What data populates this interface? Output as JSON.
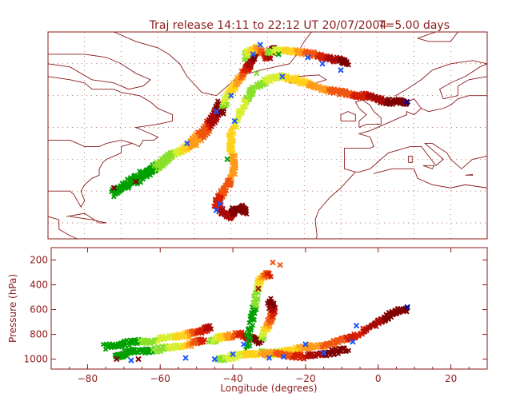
{
  "title": "Traj release 14:11 to 22:12 UT 20/07/2004",
  "time_label": "T=5.00 days",
  "colors": {
    "frame": "#8b1a1a",
    "text": "#8b1a1a",
    "coast": "#8b1a1a",
    "grid": "#8b1a1a",
    "palette": [
      "#00009c",
      "#1a55ff",
      "#00a000",
      "#88e02a",
      "#d8ef30",
      "#ffd21a",
      "#ff9a1a",
      "#f05510",
      "#d51d00",
      "#a80a08",
      "#7e0000"
    ]
  },
  "chart_data": [
    {
      "type": "map",
      "description_visible": "trajectory map panel",
      "grid": true,
      "lon_range": [
        -90,
        30
      ],
      "lat_range": [
        15,
        80
      ],
      "trajectories": [
        {
          "lon": [
            -72,
            -70,
            -66,
            -62,
            -58,
            -55,
            -52,
            -50,
            -48,
            -46,
            -44,
            -43
          ],
          "lat": [
            29,
            31,
            33,
            36,
            39,
            42,
            44,
            46,
            49,
            52,
            55,
            58
          ]
        },
        {
          "lon": [
            -72,
            -69,
            -65,
            -61,
            -57,
            -53,
            -50,
            -48,
            -46,
            -44,
            -42
          ],
          "lat": [
            30,
            32,
            35,
            38,
            41,
            43,
            45,
            47,
            50,
            53,
            56
          ]
        },
        {
          "lon": [
            -42,
            -41,
            -39,
            -37,
            -36,
            -35,
            -34,
            -33
          ],
          "lat": [
            57,
            60,
            63,
            66,
            68,
            70,
            72,
            74
          ]
        },
        {
          "lon": [
            -36,
            -35,
            -33,
            -31,
            -30,
            -29,
            -28
          ],
          "lat": [
            72,
            74,
            75,
            73,
            72,
            74,
            75
          ]
        },
        {
          "lon": [
            -34,
            -36,
            -38,
            -40,
            -40,
            -39,
            -40,
            -42,
            -43,
            -44,
            -42,
            -40,
            -39,
            -37,
            -36
          ],
          "lat": [
            62,
            58,
            53,
            48,
            43,
            38,
            34,
            30,
            28,
            26,
            23,
            22,
            24,
            25,
            23
          ]
        },
        {
          "lon": [
            -33,
            -30,
            -26,
            -22,
            -18,
            -14,
            -10,
            -6,
            -3,
            0,
            3,
            6,
            8
          ],
          "lat": [
            63,
            65,
            66,
            65,
            63,
            62,
            61,
            60,
            60,
            59,
            58,
            58,
            58
          ]
        },
        {
          "lon": [
            -30,
            -26,
            -22,
            -18,
            -14,
            -10,
            -8
          ],
          "lat": [
            74,
            74,
            74,
            73,
            72,
            71,
            70
          ]
        }
      ],
      "markers": [
        {
          "lon": -72,
          "lat": 31,
          "color": "#7e0000"
        },
        {
          "lon": -66,
          "lat": 33,
          "color": "#7e0000"
        },
        {
          "lon": -52,
          "lat": 45,
          "color": "#1a55ff"
        },
        {
          "lon": -44,
          "lat": 55,
          "color": "#1a55ff"
        },
        {
          "lon": -40,
          "lat": 60,
          "color": "#1a55ff"
        },
        {
          "lon": -41,
          "lat": 40,
          "color": "#00a000"
        },
        {
          "lon": -39,
          "lat": 52,
          "color": "#1a55ff"
        },
        {
          "lon": -43,
          "lat": 26,
          "color": "#1a55ff"
        },
        {
          "lon": -44,
          "lat": 24,
          "color": "#1a55ff"
        },
        {
          "lon": -34,
          "lat": 73,
          "color": "#1a55ff"
        },
        {
          "lon": -32,
          "lat": 76,
          "color": "#1a55ff"
        },
        {
          "lon": -27,
          "lat": 73,
          "color": "#00a000"
        },
        {
          "lon": -19,
          "lat": 72,
          "color": "#1a55ff"
        },
        {
          "lon": -15,
          "lat": 70,
          "color": "#1a55ff"
        },
        {
          "lon": -10,
          "lat": 68,
          "color": "#1a55ff"
        },
        {
          "lon": -33,
          "lat": 67,
          "color": "#88e02a"
        },
        {
          "lon": -26,
          "lat": 66,
          "color": "#1a55ff"
        },
        {
          "lon": 8,
          "lat": 58,
          "color": "#00009c"
        }
      ]
    },
    {
      "type": "scatter",
      "xlabel": "Longitude  (degrees)",
      "ylabel": "Pressure  (hPa)",
      "xlim": [
        -90,
        30
      ],
      "ylim": [
        1080,
        100
      ],
      "x_ticks": [
        -80,
        -60,
        -40,
        -20,
        0,
        20
      ],
      "x_tick_labels": [
        "−80",
        "−60",
        "−40",
        "−20",
        "0",
        "20"
      ],
      "y_ticks": [
        200,
        400,
        600,
        800,
        1000
      ],
      "y_tick_labels": [
        "200",
        "400",
        "600",
        "800",
        "1000"
      ],
      "trajectories": [
        {
          "lon": [
            -75,
            -72,
            -70,
            -66,
            -62,
            -58,
            -55,
            -52,
            -50,
            -48,
            -46
          ],
          "p": [
            900,
            890,
            870,
            860,
            850,
            830,
            810,
            800,
            780,
            760,
            740
          ]
        },
        {
          "lon": [
            -72,
            -70,
            -68,
            -64,
            -60,
            -56,
            -52,
            -50,
            -48
          ],
          "p": [
            980,
            960,
            940,
            930,
            920,
            900,
            880,
            860,
            840
          ]
        },
        {
          "lon": [
            -46,
            -44,
            -42,
            -40,
            -38,
            -36,
            -34,
            -32
          ],
          "p": [
            850,
            830,
            820,
            810,
            800,
            820,
            840,
            860
          ]
        },
        {
          "lon": [
            -36,
            -35,
            -34,
            -33,
            -32,
            -31,
            -30
          ],
          "p": [
            900,
            700,
            550,
            400,
            330,
            320,
            320
          ]
        },
        {
          "lon": [
            -32,
            -30,
            -28,
            -25,
            -22,
            -18,
            -14,
            -10,
            -6,
            -3,
            0,
            3,
            6,
            8
          ],
          "p": [
            950,
            960,
            950,
            930,
            920,
            900,
            880,
            850,
            810,
            760,
            700,
            650,
            610,
            590
          ]
        },
        {
          "lon": [
            -44,
            -40,
            -36,
            -32,
            -28,
            -24,
            -20,
            -16,
            -12,
            -8
          ],
          "p": [
            1000,
            980,
            960,
            950,
            960,
            970,
            980,
            960,
            940,
            920
          ]
        },
        {
          "lon": [
            -32,
            -31,
            -30,
            -29,
            -29,
            -30
          ],
          "p": [
            820,
            760,
            700,
            640,
            570,
            520
          ]
        }
      ],
      "markers": [
        {
          "lon": -29,
          "p": 220,
          "color": "#f05510"
        },
        {
          "lon": -27,
          "p": 240,
          "color": "#f05510"
        },
        {
          "lon": -33,
          "p": 430,
          "color": "#a80a08"
        },
        {
          "lon": -30,
          "p": 590,
          "color": "#a80a08"
        },
        {
          "lon": -72,
          "p": 1000,
          "color": "#7e0000"
        },
        {
          "lon": -66,
          "p": 1000,
          "color": "#7e0000"
        },
        {
          "lon": -68,
          "p": 1010,
          "color": "#1a55ff"
        },
        {
          "lon": -53,
          "p": 990,
          "color": "#1a55ff"
        },
        {
          "lon": -45,
          "p": 1000,
          "color": "#1a55ff"
        },
        {
          "lon": -40,
          "p": 960,
          "color": "#1a55ff"
        },
        {
          "lon": -37,
          "p": 880,
          "color": "#1a55ff"
        },
        {
          "lon": -30,
          "p": 990,
          "color": "#1a55ff"
        },
        {
          "lon": -26,
          "p": 980,
          "color": "#1a55ff"
        },
        {
          "lon": -20,
          "p": 880,
          "color": "#1a55ff"
        },
        {
          "lon": -15,
          "p": 950,
          "color": "#1a55ff"
        },
        {
          "lon": -7,
          "p": 860,
          "color": "#1a55ff"
        },
        {
          "lon": -6,
          "p": 730,
          "color": "#1a55ff"
        },
        {
          "lon": 8,
          "p": 580,
          "color": "#00009c"
        }
      ]
    }
  ]
}
